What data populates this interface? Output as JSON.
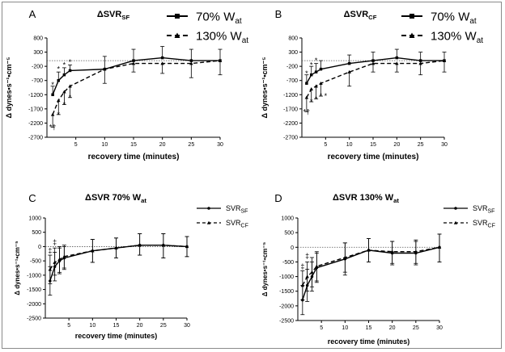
{
  "chart_data": [
    {
      "type": "line",
      "panel_letter": "A",
      "title": "ΔSVR",
      "title_sub": "SF",
      "xlabel": "recovery time (minutes)",
      "ylabel": "Δ dynes•s⁻¹•cm⁻⁵",
      "xlim": [
        0,
        30
      ],
      "ylim": [
        -2700,
        800
      ],
      "x_ticks": [
        5,
        10,
        15,
        20,
        25,
        30
      ],
      "y_ticks": [
        800,
        300,
        -200,
        -700,
        -1200,
        -1700,
        -2200,
        -2700
      ],
      "zero_reference_line": true,
      "legend_position": "top-right",
      "series": [
        {
          "name": "70% W",
          "name_sub": "at",
          "style": "solid",
          "marker": "square",
          "x": [
            1,
            2,
            3,
            4,
            10,
            15,
            20,
            25,
            30
          ],
          "y": [
            -1200,
            -700,
            -500,
            -350,
            -300,
            0,
            100,
            0,
            0
          ],
          "y_upper": [
            -900,
            -400,
            -250,
            -150,
            150,
            400,
            500,
            400,
            400
          ]
        },
        {
          "name": "130% W",
          "name_sub": "at",
          "style": "dashed",
          "marker": "triangle",
          "x": [
            1,
            2,
            3,
            4,
            10,
            15,
            20,
            25,
            30
          ],
          "y": [
            -1900,
            -1400,
            -1100,
            -900,
            -300,
            -100,
            -100,
            -100,
            0
          ],
          "y_lower": [
            -2350,
            -1900,
            -1550,
            -1300,
            -800,
            -400,
            -450,
            -600,
            -500
          ]
        }
      ],
      "annotations": [
        {
          "x": 1,
          "y": -850,
          "text": "*"
        },
        {
          "x": 2,
          "y": -300,
          "text": "*"
        },
        {
          "x": 3,
          "y": -150,
          "text": "*"
        },
        {
          "x": 4,
          "y": -50,
          "text": "*"
        },
        {
          "x": 2,
          "y": -1900,
          "text": "*"
        },
        {
          "x": 3,
          "y": -1550,
          "text": "*"
        },
        {
          "x": 4,
          "y": -1300,
          "text": "*"
        },
        {
          "x": 1,
          "y": -2350,
          "text": "*†"
        }
      ]
    },
    {
      "type": "line",
      "panel_letter": "B",
      "title": "ΔSVR",
      "title_sub": "CF",
      "xlabel": "recovery time (minutes)",
      "ylabel": "Δ dynes•s⁻¹•cm⁻⁵",
      "xlim": [
        0,
        30
      ],
      "ylim": [
        -2700,
        800
      ],
      "x_ticks": [
        5,
        10,
        15,
        20,
        25,
        30
      ],
      "y_ticks": [
        800,
        300,
        -200,
        -700,
        -1200,
        -1700,
        -2200,
        -2700
      ],
      "zero_reference_line": true,
      "legend_position": "top-right",
      "series": [
        {
          "name": "70% W",
          "name_sub": "at",
          "style": "solid",
          "marker": "square",
          "x": [
            1,
            2,
            3,
            4,
            10,
            15,
            20,
            25,
            30
          ],
          "y": [
            -800,
            -500,
            -400,
            -300,
            -100,
            0,
            100,
            0,
            0
          ],
          "y_upper": [
            -500,
            -200,
            -100,
            0,
            200,
            300,
            400,
            300,
            300
          ]
        },
        {
          "name": "130% W",
          "name_sub": "at",
          "style": "dashed",
          "marker": "triangle",
          "x": [
            1,
            2,
            3,
            4,
            10,
            15,
            20,
            25,
            30
          ],
          "y": [
            -1300,
            -1000,
            -900,
            -800,
            -400,
            -100,
            -100,
            -100,
            0
          ],
          "y_lower": [
            -1800,
            -1450,
            -1350,
            -1250,
            -900,
            -400,
            -400,
            -500,
            -400
          ]
        }
      ],
      "annotations": [
        {
          "x": 1,
          "y": -450,
          "text": "*"
        },
        {
          "x": 2,
          "y": -150,
          "text": "*"
        },
        {
          "x": 3,
          "y": 0,
          "text": "*"
        },
        {
          "x": 2,
          "y": -1450,
          "text": "*"
        },
        {
          "x": 3,
          "y": -1350,
          "text": "*"
        },
        {
          "x": 4,
          "y": -1250,
          "text": "*"
        },
        {
          "x": 5,
          "y": -1250,
          "text": "*"
        },
        {
          "x": 1,
          "y": -1800,
          "text": "*†"
        }
      ]
    },
    {
      "type": "line",
      "panel_letter": "C",
      "title": "ΔSVR 70% W",
      "title_sub": "at",
      "xlabel": "recovery time (minutes)",
      "ylabel": "Δ dynes•s⁻¹•cm⁻⁵",
      "xlim": [
        0,
        30
      ],
      "ylim": [
        -2500,
        1000
      ],
      "x_ticks": [
        5,
        10,
        15,
        20,
        25,
        30
      ],
      "y_ticks": [
        1000,
        500,
        0,
        -500,
        -1000,
        -1500,
        -2000,
        -2500
      ],
      "zero_reference_line": true,
      "legend_position": "top-right",
      "series": [
        {
          "name": "SVR",
          "name_sub": "SF",
          "style": "solid",
          "marker": "circle",
          "x": [
            1,
            2,
            3,
            4,
            10,
            15,
            20,
            25,
            30
          ],
          "y": [
            -1200,
            -700,
            -500,
            -400,
            -150,
            -50,
            50,
            50,
            0
          ],
          "y_lower": [
            -1700,
            -1200,
            -950,
            -800,
            -550,
            -400,
            -300,
            -400,
            -350
          ],
          "y_upper": [
            -700,
            -200,
            -50,
            0,
            250,
            300,
            450,
            450,
            350
          ]
        },
        {
          "name": "SVR",
          "name_sub": "CF",
          "style": "dashed",
          "marker": "triangle",
          "x": [
            1,
            2,
            3,
            4,
            10,
            15,
            20,
            25,
            30
          ],
          "y": [
            -800,
            -550,
            -450,
            -350,
            -150,
            -50,
            50,
            50,
            0
          ],
          "y_lower": [
            -1300,
            -1000,
            -900,
            -750,
            -550,
            -400,
            -300,
            -400,
            -350
          ],
          "y_upper": [
            -300,
            -50,
            0,
            50,
            250,
            300,
            450,
            450,
            350
          ]
        }
      ],
      "annotations": [
        {
          "x": 1,
          "y": -150,
          "text": "‡"
        },
        {
          "x": 2,
          "y": 150,
          "text": "‡"
        }
      ]
    },
    {
      "type": "line",
      "panel_letter": "D",
      "title": "ΔSVR 130% W",
      "title_sub": "at",
      "xlabel": "recovery time (minutes)",
      "ylabel": "Δ dynes•s⁻¹•cm⁻⁵",
      "xlim": [
        0,
        30
      ],
      "ylim": [
        -2500,
        1000
      ],
      "x_ticks": [
        5,
        10,
        15,
        20,
        25,
        30
      ],
      "y_ticks": [
        1000,
        500,
        0,
        -500,
        -1000,
        -1500,
        -2000,
        -2500
      ],
      "zero_reference_line": true,
      "legend_position": "top-right",
      "series": [
        {
          "name": "SVR",
          "name_sub": "SF",
          "style": "solid",
          "marker": "circle",
          "x": [
            1,
            2,
            3,
            4,
            10,
            15,
            20,
            25,
            30
          ],
          "y": [
            -1800,
            -1300,
            -1000,
            -700,
            -400,
            -100,
            -200,
            -200,
            0
          ],
          "y_lower": [
            -2300,
            -1850,
            -1500,
            -1200,
            -950,
            -500,
            -600,
            -600,
            -500
          ],
          "y_upper": [
            -1300,
            -750,
            -500,
            -200,
            150,
            300,
            200,
            200,
            450
          ]
        },
        {
          "name": "SVR",
          "name_sub": "CF",
          "style": "dashed",
          "marker": "triangle",
          "x": [
            1,
            2,
            3,
            4,
            10,
            15,
            20,
            25,
            30
          ],
          "y": [
            -1300,
            -1000,
            -850,
            -650,
            -350,
            -100,
            -150,
            -150,
            0
          ],
          "y_lower": [
            -1800,
            -1500,
            -1350,
            -1150,
            -850,
            -500,
            -550,
            -550,
            -500
          ],
          "y_upper": [
            -800,
            -500,
            -350,
            -150,
            150,
            300,
            200,
            250,
            450
          ]
        }
      ],
      "annotations": [
        {
          "x": 1,
          "y": -650,
          "text": "‡"
        },
        {
          "x": 2,
          "y": -300,
          "text": "‡"
        }
      ]
    }
  ]
}
